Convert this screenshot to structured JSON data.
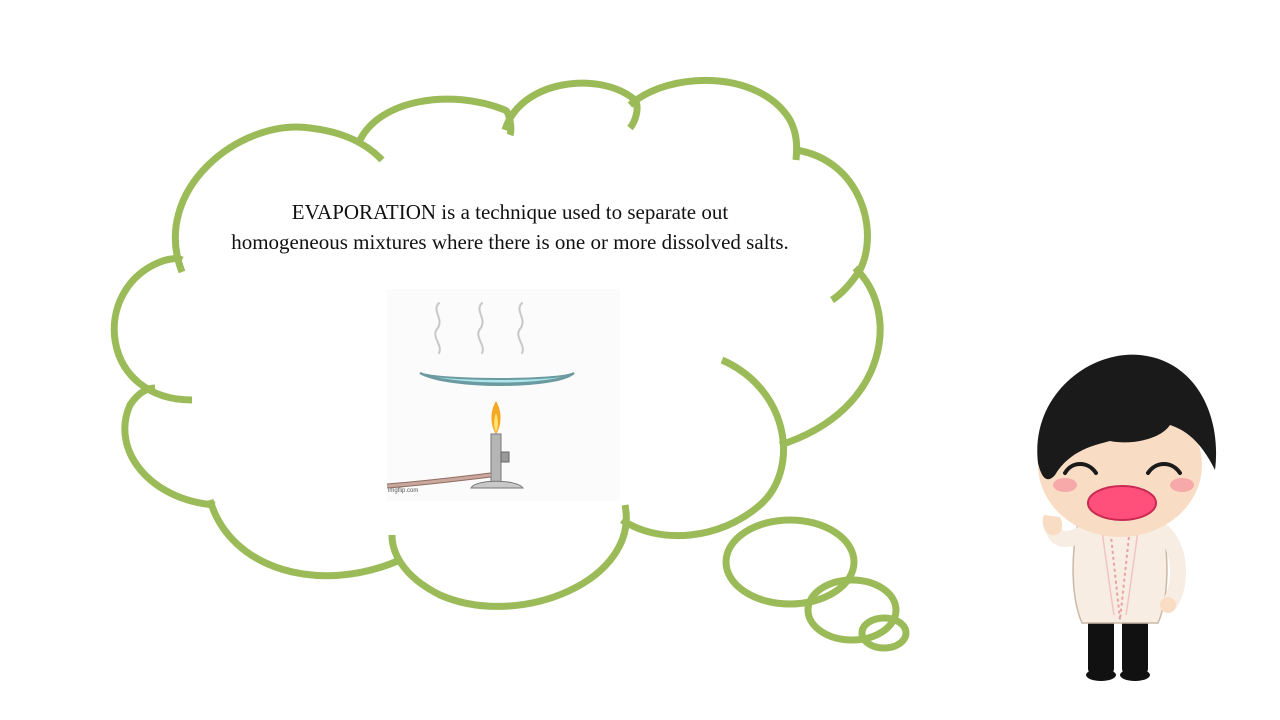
{
  "slide": {
    "caption_line1": "EVAPORATION is a technique used to separate out",
    "caption_line2": "homogeneous mixtures where there is one or more dissolved salts.",
    "illustration": {
      "subject": "evaporating dish heated by bunsen burner",
      "watermark": "imgflip.com"
    },
    "character": {
      "description": "waving chibi boy in barong tagalog"
    }
  },
  "colors": {
    "cloud_outline": "#9bbb59",
    "dish_liquid": "#aee6ec",
    "flame_outer": "#f5a623",
    "flame_inner": "#ffe56b",
    "burner_metal": "#b5b5b5",
    "hose": "#c9a79d",
    "hair": "#1a1a1a",
    "mouth": "#ff4f7a"
  }
}
